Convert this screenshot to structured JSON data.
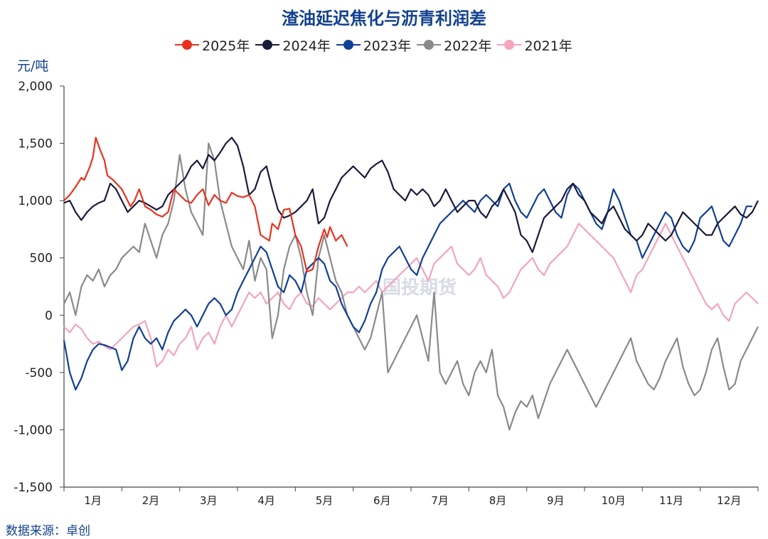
{
  "chart_data": {
    "type": "line",
    "title": "渣油延迟焦化与沥青利润差",
    "ylabel": "元/吨",
    "ylim": [
      -1500,
      2000
    ],
    "yticks": [
      -1500,
      -1000,
      -500,
      0,
      500,
      1000,
      1500,
      2000
    ],
    "ytick_labels": [
      "-1,500",
      "-1,000",
      "-500",
      "0",
      "500",
      "1,000",
      "1,500",
      "2,000"
    ],
    "categories": [
      "1月",
      "2月",
      "3月",
      "4月",
      "5月",
      "6月",
      "7月",
      "8月",
      "9月",
      "10月",
      "11月",
      "12月"
    ],
    "xlim": [
      0,
      12
    ],
    "grid": false,
    "legend_position": "top",
    "source": "数据来源：卓创",
    "watermark": "国投期货",
    "series": [
      {
        "name": "2025年",
        "color": "#e8321e",
        "x": [
          0,
          0.1,
          0.2,
          0.3,
          0.35,
          0.45,
          0.5,
          0.55,
          0.62,
          0.7,
          0.75,
          0.85,
          1.0,
          1.15,
          1.22,
          1.3,
          1.4,
          1.5,
          1.6,
          1.7,
          1.8,
          1.9,
          2.0,
          2.1,
          2.2,
          2.3,
          2.4,
          2.5,
          2.6,
          2.7,
          2.8,
          2.9,
          3.0,
          3.1,
          3.2,
          3.3,
          3.4,
          3.55,
          3.6,
          3.7,
          3.8,
          3.9,
          4.0,
          4.1,
          4.2,
          4.3,
          4.4,
          4.5,
          4.55,
          4.6,
          4.7,
          4.8,
          4.9
        ],
        "y": [
          1000,
          1050,
          1120,
          1200,
          1180,
          1300,
          1380,
          1550,
          1450,
          1350,
          1220,
          1180,
          1100,
          950,
          1000,
          1100,
          950,
          920,
          880,
          860,
          900,
          1100,
          1050,
          1000,
          980,
          1050,
          1100,
          960,
          1050,
          1000,
          980,
          1070,
          1040,
          1030,
          1050,
          950,
          700,
          650,
          800,
          750,
          920,
          930,
          700,
          600,
          380,
          400,
          600,
          750,
          680,
          770,
          650,
          700,
          600
        ]
      },
      {
        "name": "2024年",
        "color": "#1a1a3a",
        "x": [
          0,
          0.1,
          0.2,
          0.3,
          0.4,
          0.5,
          0.6,
          0.7,
          0.8,
          0.9,
          1.0,
          1.1,
          1.2,
          1.3,
          1.4,
          1.5,
          1.6,
          1.7,
          1.8,
          1.9,
          2.0,
          2.1,
          2.2,
          2.3,
          2.4,
          2.5,
          2.6,
          2.7,
          2.8,
          2.9,
          3.0,
          3.1,
          3.2,
          3.3,
          3.4,
          3.5,
          3.6,
          3.7,
          3.8,
          3.9,
          4.0,
          4.1,
          4.2,
          4.3,
          4.4,
          4.5,
          4.6,
          4.7,
          4.8,
          4.9,
          5.0,
          5.1,
          5.2,
          5.3,
          5.4,
          5.5,
          5.6,
          5.7,
          5.8,
          5.9,
          6.0,
          6.1,
          6.2,
          6.3,
          6.4,
          6.5,
          6.6,
          6.7,
          6.8,
          6.9,
          7.0,
          7.1,
          7.2,
          7.3,
          7.4,
          7.5,
          7.6,
          7.7,
          7.8,
          7.9,
          8.0,
          8.1,
          8.2,
          8.3,
          8.4,
          8.5,
          8.6,
          8.7,
          8.8,
          8.9,
          9.0,
          9.1,
          9.2,
          9.3,
          9.4,
          9.5,
          9.6,
          9.7,
          9.8,
          9.9,
          10.0,
          10.1,
          10.2,
          10.3,
          10.4,
          10.5,
          10.6,
          10.7,
          10.8,
          10.9,
          11.0,
          11.1,
          11.2,
          11.3,
          11.4,
          11.5,
          11.6,
          11.7,
          11.8,
          11.9,
          12.0
        ],
        "y": [
          980,
          1000,
          900,
          830,
          900,
          950,
          980,
          1000,
          1150,
          1100,
          1000,
          900,
          950,
          1000,
          980,
          950,
          920,
          950,
          1050,
          1100,
          1150,
          1200,
          1300,
          1350,
          1280,
          1400,
          1350,
          1420,
          1500,
          1550,
          1480,
          1300,
          1050,
          1100,
          1250,
          1300,
          1100,
          920,
          850,
          870,
          900,
          950,
          1000,
          1100,
          800,
          850,
          1000,
          1100,
          1200,
          1250,
          1300,
          1250,
          1200,
          1280,
          1320,
          1350,
          1250,
          1100,
          1050,
          1000,
          1100,
          1050,
          1100,
          1050,
          950,
          1000,
          1100,
          1000,
          900,
          950,
          1000,
          1000,
          900,
          850,
          950,
          1000,
          1100,
          1000,
          900,
          700,
          650,
          550,
          700,
          850,
          900,
          950,
          1000,
          1100,
          1150,
          1050,
          1000,
          900,
          850,
          800,
          900,
          950,
          850,
          750,
          700,
          650,
          700,
          800,
          750,
          700,
          650,
          700,
          800,
          900,
          850,
          800,
          750,
          700,
          700,
          800,
          850,
          900,
          950,
          880,
          850,
          900,
          1000
        ]
      },
      {
        "name": "2023年",
        "color": "#123f96",
        "x": [
          0,
          0.1,
          0.2,
          0.3,
          0.4,
          0.5,
          0.6,
          0.7,
          0.8,
          0.9,
          1.0,
          1.1,
          1.2,
          1.3,
          1.4,
          1.5,
          1.6,
          1.7,
          1.8,
          1.9,
          2.0,
          2.1,
          2.2,
          2.3,
          2.4,
          2.5,
          2.6,
          2.7,
          2.8,
          2.9,
          3.0,
          3.1,
          3.2,
          3.3,
          3.4,
          3.5,
          3.6,
          3.7,
          3.8,
          3.9,
          4.0,
          4.1,
          4.2,
          4.3,
          4.4,
          4.5,
          4.6,
          4.7,
          4.8,
          4.9,
          5.0,
          5.1,
          5.2,
          5.3,
          5.4,
          5.5,
          5.6,
          5.7,
          5.8,
          5.9,
          6.0,
          6.1,
          6.2,
          6.3,
          6.4,
          6.5,
          6.6,
          6.7,
          6.8,
          6.9,
          7.0,
          7.1,
          7.2,
          7.3,
          7.4,
          7.5,
          7.6,
          7.7,
          7.8,
          7.9,
          8.0,
          8.1,
          8.2,
          8.3,
          8.4,
          8.5,
          8.6,
          8.7,
          8.8,
          8.9,
          9.0,
          9.1,
          9.2,
          9.3,
          9.4,
          9.5,
          9.6,
          9.7,
          9.8,
          9.9,
          10.0,
          10.1,
          10.2,
          10.3,
          10.4,
          10.5,
          10.6,
          10.7,
          10.8,
          10.9,
          11.0,
          11.1,
          11.2,
          11.3,
          11.4,
          11.5,
          11.6,
          11.7,
          11.8,
          11.9
        ],
        "y": [
          -220,
          -500,
          -650,
          -550,
          -400,
          -300,
          -250,
          -260,
          -280,
          -300,
          -480,
          -400,
          -200,
          -100,
          -200,
          -250,
          -200,
          -300,
          -150,
          -50,
          0,
          50,
          0,
          -100,
          0,
          100,
          150,
          100,
          0,
          50,
          200,
          300,
          400,
          500,
          600,
          550,
          400,
          250,
          200,
          350,
          300,
          200,
          400,
          450,
          500,
          450,
          300,
          250,
          100,
          0,
          -100,
          -150,
          -50,
          100,
          200,
          400,
          500,
          550,
          600,
          500,
          400,
          350,
          500,
          600,
          700,
          800,
          850,
          900,
          950,
          1000,
          950,
          900,
          1000,
          1050,
          1000,
          950,
          1100,
          1150,
          1000,
          900,
          850,
          950,
          1050,
          1100,
          1000,
          900,
          850,
          1050,
          1150,
          1100,
          1000,
          900,
          800,
          750,
          900,
          1100,
          1000,
          850,
          700,
          650,
          500,
          600,
          700,
          800,
          900,
          850,
          700,
          600,
          550,
          650,
          850,
          900,
          950,
          800,
          650,
          600,
          700,
          800,
          950,
          950
        ]
      },
      {
        "name": "2022年",
        "color": "#8a8a8a",
        "x": [
          0,
          0.1,
          0.2,
          0.3,
          0.4,
          0.5,
          0.6,
          0.7,
          0.8,
          0.9,
          1.0,
          1.1,
          1.2,
          1.3,
          1.4,
          1.5,
          1.6,
          1.7,
          1.8,
          1.9,
          2.0,
          2.1,
          2.2,
          2.3,
          2.4,
          2.5,
          2.6,
          2.7,
          2.8,
          2.9,
          3.0,
          3.1,
          3.2,
          3.3,
          3.4,
          3.5,
          3.6,
          3.7,
          3.8,
          3.9,
          4.0,
          4.1,
          4.2,
          4.3,
          4.4,
          4.5,
          4.6,
          4.7,
          4.8,
          4.9,
          5.0,
          5.1,
          5.2,
          5.3,
          5.4,
          5.5,
          5.6,
          5.7,
          5.8,
          5.9,
          6.0,
          6.1,
          6.2,
          6.3,
          6.4,
          6.5,
          6.6,
          6.7,
          6.8,
          6.9,
          7.0,
          7.1,
          7.2,
          7.3,
          7.4,
          7.5,
          7.6,
          7.7,
          7.8,
          7.9,
          8.0,
          8.1,
          8.2,
          8.3,
          8.4,
          8.5,
          8.6,
          8.7,
          8.8,
          8.9,
          9.0,
          9.1,
          9.2,
          9.3,
          9.4,
          9.5,
          9.6,
          9.7,
          9.8,
          9.9,
          10.0,
          10.1,
          10.2,
          10.3,
          10.4,
          10.5,
          10.6,
          10.7,
          10.8,
          10.9,
          11.0,
          11.1,
          11.2,
          11.3,
          11.4,
          11.5,
          11.6,
          11.7,
          11.8,
          11.9,
          12.0
        ],
        "y": [
          100,
          200,
          0,
          250,
          350,
          300,
          400,
          250,
          350,
          400,
          500,
          550,
          600,
          550,
          800,
          650,
          500,
          700,
          800,
          1000,
          1400,
          1100,
          900,
          800,
          700,
          1500,
          1350,
          1000,
          800,
          600,
          500,
          400,
          650,
          300,
          500,
          400,
          -200,
          0,
          400,
          600,
          700,
          500,
          200,
          0,
          500,
          700,
          500,
          300,
          200,
          0,
          -100,
          -200,
          -300,
          -200,
          0,
          200,
          -500,
          -400,
          -300,
          -200,
          -100,
          0,
          -200,
          -400,
          200,
          -500,
          -600,
          -500,
          -400,
          -600,
          -700,
          -500,
          -400,
          -500,
          -300,
          -700,
          -800,
          -1000,
          -850,
          -750,
          -800,
          -700,
          -900,
          -750,
          -600,
          -500,
          -400,
          -300,
          -400,
          -500,
          -600,
          -700,
          -800,
          -700,
          -600,
          -500,
          -400,
          -300,
          -200,
          -400,
          -500,
          -600,
          -650,
          -550,
          -400,
          -300,
          -200,
          -450,
          -600,
          -700,
          -650,
          -500,
          -300,
          -200,
          -450,
          -650,
          -600,
          -400,
          -300,
          -200,
          -100
        ]
      },
      {
        "name": "2021年",
        "color": "#f4a4bb",
        "x": [
          0,
          0.1,
          0.2,
          0.3,
          0.4,
          0.5,
          0.6,
          0.7,
          0.8,
          0.9,
          1.0,
          1.1,
          1.2,
          1.3,
          1.4,
          1.5,
          1.6,
          1.7,
          1.8,
          1.9,
          2.0,
          2.1,
          2.2,
          2.3,
          2.4,
          2.5,
          2.6,
          2.7,
          2.8,
          2.9,
          3.0,
          3.1,
          3.2,
          3.3,
          3.4,
          3.5,
          3.6,
          3.7,
          3.8,
          3.9,
          4.0,
          4.1,
          4.2,
          4.3,
          4.4,
          4.5,
          4.6,
          4.7,
          4.8,
          4.9,
          5.0,
          5.1,
          5.2,
          5.3,
          5.4,
          5.5,
          5.6,
          5.7,
          5.8,
          5.9,
          6.0,
          6.1,
          6.2,
          6.3,
          6.4,
          6.5,
          6.6,
          6.7,
          6.8,
          6.9,
          7.0,
          7.1,
          7.2,
          7.3,
          7.4,
          7.5,
          7.6,
          7.7,
          7.8,
          7.9,
          8.0,
          8.1,
          8.2,
          8.3,
          8.4,
          8.5,
          8.6,
          8.7,
          8.8,
          8.9,
          9.0,
          9.1,
          9.2,
          9.3,
          9.4,
          9.5,
          9.6,
          9.7,
          9.8,
          9.9,
          10.0,
          10.1,
          10.2,
          10.3,
          10.4,
          10.5,
          10.6,
          10.7,
          10.8,
          10.9,
          11.0,
          11.1,
          11.2,
          11.3,
          11.4,
          11.5,
          11.6,
          11.7,
          11.8,
          11.9,
          12.0
        ],
        "y": [
          -100,
          -150,
          -80,
          -120,
          -200,
          -250,
          -230,
          -270,
          -300,
          -250,
          -200,
          -150,
          -100,
          -80,
          -50,
          -200,
          -450,
          -400,
          -300,
          -350,
          -250,
          -200,
          -100,
          -300,
          -200,
          -150,
          -250,
          -100,
          0,
          -100,
          0,
          100,
          200,
          150,
          200,
          100,
          150,
          200,
          100,
          50,
          150,
          200,
          100,
          80,
          150,
          100,
          50,
          100,
          150,
          200,
          200,
          250,
          200,
          250,
          300,
          200,
          250,
          300,
          350,
          400,
          450,
          500,
          400,
          300,
          450,
          500,
          550,
          600,
          450,
          400,
          350,
          400,
          500,
          350,
          300,
          250,
          150,
          200,
          300,
          400,
          450,
          500,
          400,
          350,
          450,
          500,
          550,
          600,
          700,
          800,
          750,
          700,
          650,
          600,
          550,
          500,
          400,
          300,
          200,
          350,
          400,
          500,
          600,
          700,
          800,
          700,
          600,
          500,
          400,
          300,
          200,
          100,
          50,
          100,
          0,
          -50,
          100,
          150,
          200,
          150,
          100
        ]
      }
    ]
  }
}
